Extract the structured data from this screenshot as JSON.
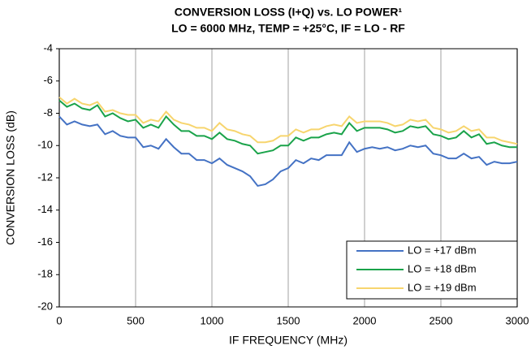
{
  "chart_data": {
    "type": "line",
    "title": "CONVERSION LOSS (I+Q) vs. LO POWER¹",
    "subtitle": "LO = 6000 MHz, TEMP = +25°C, IF = LO - RF",
    "x_label": "IF FREQUENCY (MHz)",
    "y_label": "CONVERSION LOSS (dB)",
    "x": [
      0,
      50,
      100,
      150,
      200,
      250,
      300,
      350,
      400,
      450,
      500,
      550,
      600,
      650,
      700,
      750,
      800,
      850,
      900,
      950,
      1000,
      1050,
      1100,
      1150,
      1200,
      1250,
      1300,
      1350,
      1400,
      1450,
      1500,
      1550,
      1600,
      1650,
      1700,
      1750,
      1800,
      1850,
      1900,
      1950,
      2000,
      2050,
      2100,
      2150,
      2200,
      2250,
      2300,
      2350,
      2400,
      2450,
      2500,
      2550,
      2600,
      2650,
      2700,
      2750,
      2800,
      2850,
      2900,
      2950,
      3000
    ],
    "series": [
      {
        "name": "LO = +17 dBm",
        "color": "#4472c4",
        "values": [
          -8.2,
          -8.7,
          -8.5,
          -8.7,
          -8.8,
          -8.7,
          -9.3,
          -9.1,
          -9.4,
          -9.5,
          -9.5,
          -10.1,
          -10.0,
          -10.2,
          -9.6,
          -10.1,
          -10.5,
          -10.5,
          -10.9,
          -10.9,
          -11.1,
          -10.8,
          -11.2,
          -11.4,
          -11.6,
          -11.9,
          -12.5,
          -12.4,
          -12.1,
          -11.6,
          -11.4,
          -10.9,
          -11.1,
          -10.8,
          -10.9,
          -10.6,
          -10.6,
          -10.6,
          -9.8,
          -10.4,
          -10.2,
          -10.1,
          -10.2,
          -10.1,
          -10.3,
          -10.2,
          -10.0,
          -10.1,
          -10.0,
          -10.5,
          -10.6,
          -10.8,
          -10.8,
          -10.5,
          -10.8,
          -10.7,
          -11.2,
          -11.0,
          -11.1,
          -11.1,
          -11.0
        ]
      },
      {
        "name": "LO = +18 dBm",
        "color": "#1aa34a",
        "values": [
          -7.2,
          -7.6,
          -7.4,
          -7.7,
          -7.8,
          -7.5,
          -8.2,
          -8.0,
          -8.3,
          -8.5,
          -8.4,
          -8.9,
          -8.7,
          -8.9,
          -8.2,
          -8.7,
          -9.1,
          -9.1,
          -9.4,
          -9.4,
          -9.6,
          -9.2,
          -9.6,
          -9.7,
          -9.9,
          -10.0,
          -10.5,
          -10.4,
          -10.3,
          -10.0,
          -10.0,
          -9.5,
          -9.7,
          -9.5,
          -9.5,
          -9.3,
          -9.2,
          -9.3,
          -8.6,
          -9.1,
          -8.9,
          -8.9,
          -8.9,
          -9.0,
          -9.2,
          -9.1,
          -8.8,
          -8.9,
          -8.8,
          -9.3,
          -9.4,
          -9.6,
          -9.5,
          -9.1,
          -9.5,
          -9.3,
          -9.9,
          -9.8,
          -10.0,
          -10.1,
          -10.1
        ]
      },
      {
        "name": "LO = +19 dBm",
        "color": "#f7d56e",
        "values": [
          -7.0,
          -7.4,
          -7.1,
          -7.4,
          -7.5,
          -7.3,
          -7.9,
          -7.8,
          -8.0,
          -8.1,
          -8.1,
          -8.6,
          -8.4,
          -8.5,
          -7.9,
          -8.4,
          -8.6,
          -8.7,
          -8.9,
          -8.9,
          -9.1,
          -8.6,
          -9.0,
          -9.1,
          -9.3,
          -9.4,
          -9.8,
          -9.8,
          -9.7,
          -9.4,
          -9.4,
          -9.0,
          -9.2,
          -9.0,
          -9.0,
          -8.8,
          -8.7,
          -8.8,
          -8.2,
          -8.6,
          -8.5,
          -8.5,
          -8.5,
          -8.6,
          -8.8,
          -8.7,
          -8.4,
          -8.5,
          -8.4,
          -8.9,
          -9.0,
          -9.2,
          -9.1,
          -8.8,
          -9.1,
          -9.0,
          -9.5,
          -9.5,
          -9.7,
          -9.8,
          -9.9
        ]
      }
    ],
    "xlim": [
      0,
      3000
    ],
    "xticks": [
      0,
      500,
      1000,
      1500,
      2000,
      2500,
      3000
    ],
    "ylim": [
      -20,
      -4
    ],
    "yticks": [
      -20,
      -18,
      -16,
      -14,
      -12,
      -10,
      -8,
      -6,
      -4
    ],
    "grid": "x",
    "legend": "lower right"
  }
}
